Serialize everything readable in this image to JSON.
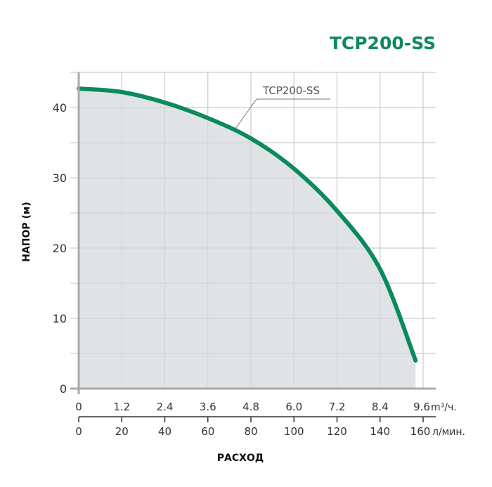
{
  "chart_data": {
    "type": "area",
    "title": "TCP200-SS",
    "ylabel": "НАПОР (м)",
    "xlabel": "РАСХОД",
    "ylim": [
      0,
      45
    ],
    "xlim": [
      0,
      9.6
    ],
    "grid": true,
    "y_ticks": [
      "0",
      "10",
      "20",
      "30",
      "40"
    ],
    "x_ticks_primary": {
      "values": [
        "0",
        "1.2",
        "2.4",
        "3.6",
        "4.8",
        "6.0",
        "7.2",
        "8.4",
        "9.6"
      ],
      "unit": "m³/ч."
    },
    "x_ticks_secondary": {
      "values": [
        "0",
        "20",
        "40",
        "60",
        "80",
        "100",
        "120",
        "140",
        "160"
      ],
      "unit": "л/мин."
    },
    "series": [
      {
        "name": "TCP200-SS",
        "color": "#0b8a5c",
        "fill": "#dfe3e6",
        "x": [
          0,
          1.2,
          2.4,
          3.6,
          4.8,
          6.0,
          7.2,
          8.4,
          9.39
        ],
        "y": [
          42.7,
          42.2,
          40.7,
          38.5,
          35.6,
          31.3,
          25.3,
          17.0,
          4.0
        ]
      }
    ],
    "annotation": "TCP200-SS",
    "title_color": "#0b8a5c"
  }
}
